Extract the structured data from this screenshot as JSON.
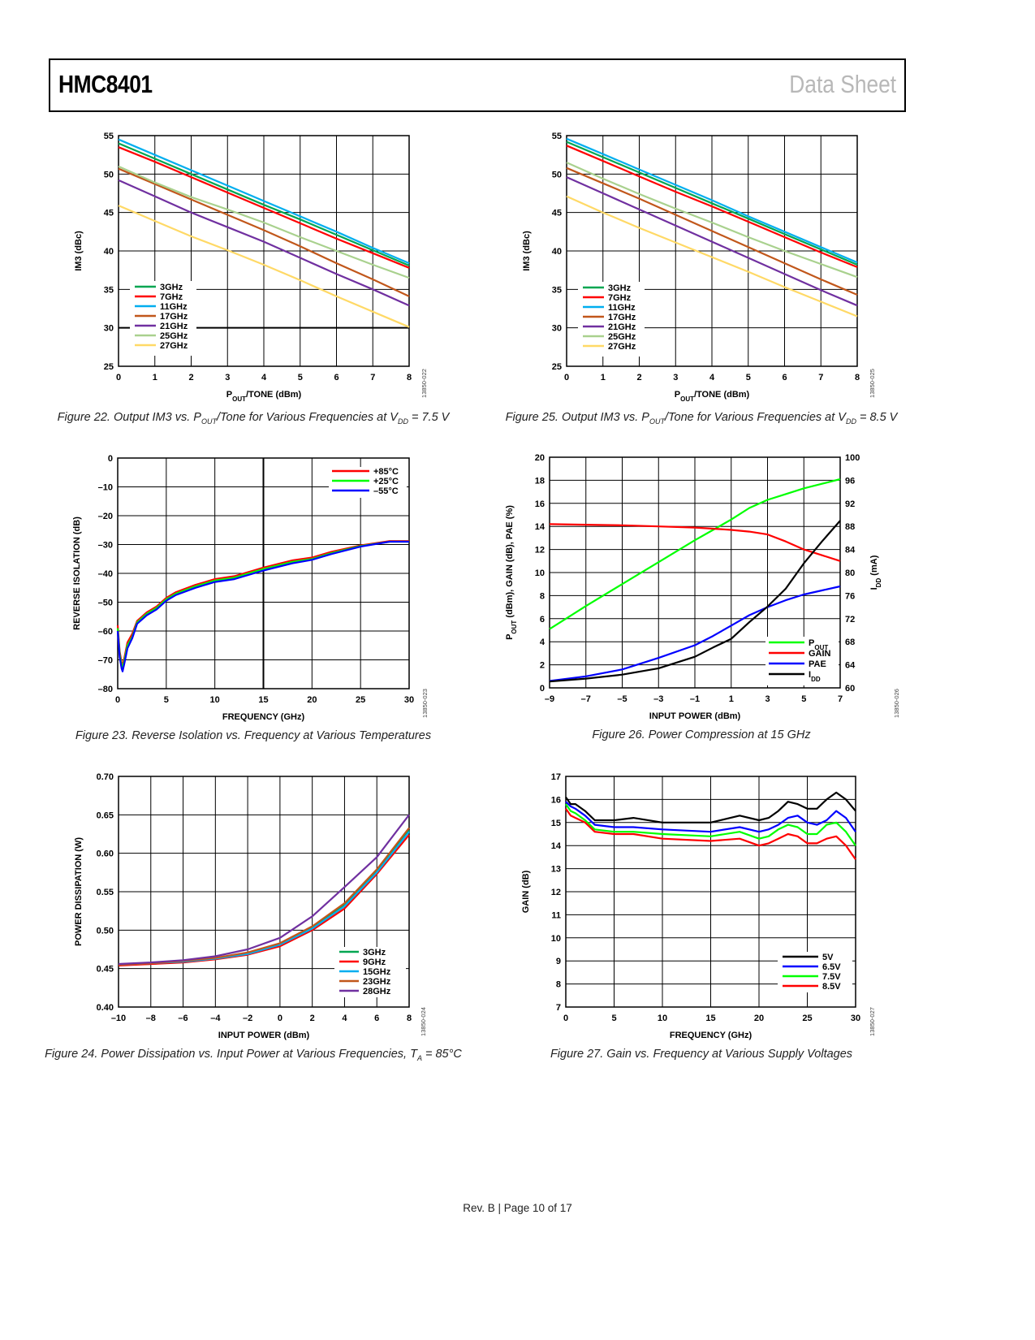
{
  "header": {
    "title": "HMC8401",
    "doc_type": "Data Sheet"
  },
  "captions": {
    "fig22": [
      "Figure 22. Output IM3 vs. P",
      "OUT",
      "/Tone for Various Frequencies at V",
      "DD",
      " = 7.5 V"
    ],
    "fig25": [
      "Figure 25. Output IM3 vs. P",
      "OUT",
      "/Tone for Various Frequencies at V",
      "DD",
      " = 8.5 V"
    ],
    "fig23": "Figure 23. Reverse Isolation vs. Frequency at Various Temperatures",
    "fig26": "Figure 26. Power Compression at 15 GHz",
    "fig24": [
      "Figure 24. Power Dissipation vs. Input Power at Various Frequencies, T",
      "A",
      " = 85°C"
    ],
    "fig27": "Figure 27. Gain vs. Frequency at Various Supply Voltages"
  },
  "footer": "Rev. B | Page 10 of 17",
  "chart_data": [
    {
      "id": "fig22",
      "type": "line",
      "code": "13850-022",
      "xlabel": [
        "P",
        [
          "OUT"
        ],
        "/TONE (dBm)"
      ],
      "ylabel": [
        "IM3 (dBc)"
      ],
      "xlim": [
        0,
        8
      ],
      "ylim": [
        25,
        55
      ],
      "xticks": [
        0,
        1,
        2,
        3,
        4,
        5,
        6,
        7,
        8
      ],
      "xtick_labels": [
        "0",
        "1",
        "2",
        "3",
        "4",
        "5",
        "6",
        "7",
        "8"
      ],
      "yticks": [
        25,
        30,
        35,
        40,
        45,
        50,
        55
      ],
      "ytick_labels": [
        "25",
        "30",
        "35",
        "40",
        "45",
        "50",
        "55"
      ],
      "grid": true,
      "legend_position": "bottom-left",
      "x": [
        0,
        1,
        2,
        3,
        4,
        5,
        6,
        7,
        8
      ],
      "series": [
        {
          "name": "3GHz",
          "color": "#00a651",
          "values": [
            54.0,
            52.0,
            50.0,
            48.0,
            46.0,
            44.1,
            42.1,
            40.1,
            38.1
          ]
        },
        {
          "name": "7GHz",
          "color": "#ff0000",
          "values": [
            53.5,
            51.6,
            49.6,
            47.6,
            45.6,
            43.6,
            41.6,
            39.7,
            37.8
          ]
        },
        {
          "name": "11GHz",
          "color": "#00aeef",
          "values": [
            54.5,
            52.5,
            50.5,
            48.5,
            46.5,
            44.5,
            42.5,
            40.4,
            38.4
          ]
        },
        {
          "name": "17GHz",
          "color": "#c1571b",
          "values": [
            50.7,
            48.7,
            46.7,
            44.7,
            42.7,
            40.6,
            38.4,
            36.3,
            34.1
          ]
        },
        {
          "name": "21GHz",
          "color": "#7030a0",
          "values": [
            49.2,
            47.1,
            45.0,
            43.1,
            41.2,
            39.1,
            37.0,
            35.0,
            32.9
          ]
        },
        {
          "name": "25GHz",
          "color": "#a9d18e",
          "values": [
            51.0,
            48.9,
            47.0,
            45.4,
            43.7,
            41.8,
            40.0,
            38.2,
            36.5
          ]
        },
        {
          "name": "27GHz",
          "color": "#ffd966",
          "values": [
            45.9,
            43.9,
            41.9,
            40.1,
            38.2,
            36.2,
            34.1,
            32.1,
            30.1
          ]
        }
      ]
    },
    {
      "id": "fig25",
      "type": "line",
      "code": "13850-025",
      "xlabel": [
        "P",
        [
          "OUT"
        ],
        "/TONE (dBm)"
      ],
      "ylabel": [
        "IM3 (dBc)"
      ],
      "xlim": [
        0,
        8
      ],
      "ylim": [
        25,
        55
      ],
      "xticks": [
        0,
        1,
        2,
        3,
        4,
        5,
        6,
        7,
        8
      ],
      "xtick_labels": [
        "0",
        "1",
        "2",
        "3",
        "4",
        "5",
        "6",
        "7",
        "8"
      ],
      "yticks": [
        25,
        30,
        35,
        40,
        45,
        50,
        55
      ],
      "ytick_labels": [
        "25",
        "30",
        "35",
        "40",
        "45",
        "50",
        "55"
      ],
      "grid": true,
      "legend_position": "bottom-left",
      "x": [
        0,
        1,
        2,
        3,
        4,
        5,
        6,
        7,
        8
      ],
      "series": [
        {
          "name": "3GHz",
          "color": "#00a651",
          "values": [
            54.2,
            52.2,
            50.2,
            48.2,
            46.2,
            44.2,
            42.2,
            40.2,
            38.2
          ]
        },
        {
          "name": "7GHz",
          "color": "#ff0000",
          "values": [
            53.7,
            51.7,
            49.7,
            47.7,
            45.8,
            43.8,
            41.8,
            39.8,
            37.9
          ]
        },
        {
          "name": "11GHz",
          "color": "#00aeef",
          "values": [
            54.6,
            52.6,
            50.6,
            48.6,
            46.6,
            44.5,
            42.5,
            40.5,
            38.5
          ]
        },
        {
          "name": "17GHz",
          "color": "#c1571b",
          "values": [
            50.8,
            48.8,
            46.8,
            44.7,
            42.6,
            40.5,
            38.4,
            36.3,
            34.3
          ]
        },
        {
          "name": "21GHz",
          "color": "#7030a0",
          "values": [
            49.6,
            47.5,
            45.4,
            43.3,
            41.2,
            39.1,
            37.0,
            34.9,
            32.9
          ]
        },
        {
          "name": "25GHz",
          "color": "#a9d18e",
          "values": [
            51.5,
            49.4,
            47.4,
            45.5,
            43.7,
            41.8,
            40.0,
            38.3,
            36.6
          ]
        },
        {
          "name": "27GHz",
          "color": "#ffd966",
          "values": [
            47.1,
            45.0,
            43.0,
            41.1,
            39.2,
            37.3,
            35.3,
            33.4,
            31.5
          ]
        }
      ]
    },
    {
      "id": "fig23",
      "type": "line",
      "code": "13850-023",
      "xlabel": [
        "FREQUENCY (GHz)"
      ],
      "ylabel": [
        "REVERSE ISOLATION (dB)"
      ],
      "xlim": [
        0,
        30
      ],
      "ylim": [
        -80,
        0
      ],
      "xticks": [
        0,
        5,
        10,
        15,
        20,
        25,
        30
      ],
      "xtick_labels": [
        "0",
        "5",
        "10",
        "15",
        "20",
        "25",
        "30"
      ],
      "yticks": [
        -80,
        -70,
        -60,
        -50,
        -40,
        -30,
        -20,
        -10,
        0
      ],
      "ytick_labels": [
        "–80",
        "–70",
        "–60",
        "–50",
        "–40",
        "–30",
        "–20",
        "–10",
        "0"
      ],
      "grid": true,
      "legend_position": "top-right",
      "x": [
        0,
        0.2,
        0.4,
        0.5,
        0.7,
        1,
        1.5,
        2,
        3,
        4,
        5,
        6,
        8,
        10,
        12,
        15,
        18,
        20,
        22,
        25,
        28,
        30
      ],
      "series": [
        {
          "name": "+85°C",
          "color": "#ff0000",
          "values": [
            -58,
            -67,
            -71,
            -72,
            -69,
            -64,
            -61,
            -56.5,
            -53.5,
            -51.5,
            -48.5,
            -46.5,
            -44,
            -42,
            -41,
            -38,
            -35.5,
            -34.5,
            -32.5,
            -30.3,
            -28.8,
            -28.8
          ]
        },
        {
          "name": "+25°C",
          "color": "#00ff00",
          "values": [
            -59,
            -68,
            -72,
            -73,
            -70,
            -65,
            -62,
            -57,
            -54,
            -52,
            -49,
            -47,
            -44.5,
            -42.5,
            -41.5,
            -38.5,
            -36,
            -35,
            -33,
            -30.5,
            -29,
            -29
          ]
        },
        {
          "name": "–55°C",
          "color": "#0000ff",
          "values": [
            -60,
            -69,
            -73,
            -74,
            -71,
            -66,
            -62.5,
            -57.5,
            -54.5,
            -52.5,
            -49.5,
            -47.5,
            -45,
            -43,
            -42,
            -39,
            -36.5,
            -35.3,
            -33.3,
            -30.7,
            -29,
            -29
          ]
        }
      ]
    },
    {
      "id": "fig26",
      "type": "line",
      "code": "13850-026",
      "xlabel": [
        "INPUT POWER (dBm)"
      ],
      "ylabel": [
        "P",
        [
          "OUT"
        ],
        " (dBm), GAIN (dB), PAE (%)"
      ],
      "y2label": [
        "I",
        [
          "DD"
        ],
        " (mA)"
      ],
      "xlim": [
        -9,
        7
      ],
      "ylim": [
        0,
        20
      ],
      "y2lim": [
        60,
        100
      ],
      "xticks": [
        -9,
        -7,
        -5,
        -3,
        -1,
        1,
        3,
        5,
        7
      ],
      "xtick_labels": [
        "–9",
        "–7",
        "–5",
        "–3",
        "–1",
        "1",
        "3",
        "5",
        "7"
      ],
      "yticks": [
        0,
        2,
        4,
        6,
        8,
        10,
        12,
        14,
        16,
        18,
        20
      ],
      "ytick_labels": [
        "0",
        "2",
        "4",
        "6",
        "8",
        "10",
        "12",
        "14",
        "16",
        "18",
        "20"
      ],
      "y2ticks": [
        60,
        64,
        68,
        72,
        76,
        80,
        84,
        88,
        92,
        96,
        100
      ],
      "y2tick_labels": [
        "60",
        "64",
        "68",
        "72",
        "76",
        "80",
        "84",
        "88",
        "92",
        "96",
        "100"
      ],
      "grid": true,
      "legend_position": "bottom-right",
      "x": [
        -9,
        -7,
        -5,
        -3,
        -1,
        0,
        1,
        2,
        3,
        4,
        5,
        6,
        7
      ],
      "series": [
        {
          "name": [
            "P",
            [
              "OUT"
            ]
          ],
          "color": "#00ff00",
          "axis": "left",
          "values": [
            5.1,
            7.1,
            9.0,
            10.9,
            12.8,
            13.7,
            14.6,
            15.6,
            16.3,
            16.8,
            17.3,
            17.7,
            18.1
          ]
        },
        {
          "name": [
            "GAIN"
          ],
          "color": "#ff0000",
          "axis": "left",
          "values": [
            14.2,
            14.15,
            14.1,
            14.0,
            13.9,
            13.8,
            13.7,
            13.55,
            13.3,
            12.7,
            12.0,
            11.5,
            11.0
          ]
        },
        {
          "name": [
            "PAE"
          ],
          "color": "#0000ff",
          "axis": "left",
          "values": [
            0.6,
            1.0,
            1.6,
            2.6,
            3.7,
            4.5,
            5.4,
            6.3,
            7.0,
            7.6,
            8.1,
            8.45,
            8.8
          ]
        },
        {
          "name": [
            "I",
            [
              "DD"
            ]
          ],
          "color": "#000000",
          "axis": "right",
          "values": [
            61.1,
            61.6,
            62.3,
            63.4,
            65.4,
            67.0,
            68.5,
            71.4,
            74.1,
            77.2,
            81.6,
            85.4,
            89.0
          ]
        }
      ]
    },
    {
      "id": "fig24",
      "type": "line",
      "code": "13850-024",
      "xlabel": [
        "INPUT POWER (dBm)"
      ],
      "ylabel": [
        "POWER DISSIPATION (W)"
      ],
      "xlim": [
        -10,
        8
      ],
      "ylim": [
        0.4,
        0.7
      ],
      "xticks": [
        -10,
        -8,
        -6,
        -4,
        -2,
        0,
        2,
        4,
        6,
        8
      ],
      "xtick_labels": [
        "–10",
        "–8",
        "–6",
        "–4",
        "–2",
        "0",
        "2",
        "4",
        "6",
        "8"
      ],
      "yticks": [
        0.4,
        0.45,
        0.5,
        0.55,
        0.6,
        0.65,
        0.7
      ],
      "ytick_labels": [
        "0.40",
        "0.45",
        "0.50",
        "0.55",
        "0.60",
        "0.65",
        "0.70"
      ],
      "grid": true,
      "legend_position": "bottom-right",
      "x": [
        -10,
        -8,
        -6,
        -4,
        -2,
        0,
        2,
        4,
        6,
        8
      ],
      "series": [
        {
          "name": "3GHz",
          "color": "#00a651",
          "values": [
            0.455,
            0.456,
            0.459,
            0.463,
            0.47,
            0.482,
            0.503,
            0.533,
            0.576,
            0.63
          ]
        },
        {
          "name": "9GHz",
          "color": "#ff0000",
          "values": [
            0.454,
            0.456,
            0.458,
            0.462,
            0.468,
            0.479,
            0.5,
            0.528,
            0.573,
            0.624
          ]
        },
        {
          "name": "15GHz",
          "color": "#00aeef",
          "values": [
            0.455,
            0.457,
            0.459,
            0.463,
            0.469,
            0.481,
            0.502,
            0.531,
            0.575,
            0.628
          ]
        },
        {
          "name": "23GHz",
          "color": "#c1571b",
          "values": [
            0.455,
            0.457,
            0.46,
            0.464,
            0.471,
            0.483,
            0.505,
            0.535,
            0.579,
            0.633
          ]
        },
        {
          "name": "28GHz",
          "color": "#7030a0",
          "values": [
            0.456,
            0.458,
            0.461,
            0.466,
            0.475,
            0.49,
            0.518,
            0.556,
            0.595,
            0.65
          ]
        }
      ]
    },
    {
      "id": "fig27",
      "type": "line",
      "code": "13850-027",
      "xlabel": [
        "FREQUENCY (GHz)"
      ],
      "ylabel": [
        "GAIN (dB)"
      ],
      "xlim": [
        0,
        30
      ],
      "ylim": [
        7,
        17
      ],
      "xticks": [
        0,
        5,
        10,
        15,
        20,
        25,
        30
      ],
      "xtick_labels": [
        "0",
        "5",
        "10",
        "15",
        "20",
        "25",
        "30"
      ],
      "yticks": [
        7,
        8,
        9,
        10,
        11,
        12,
        13,
        14,
        15,
        16,
        17
      ],
      "ytick_labels": [
        "7",
        "8",
        "9",
        "10",
        "11",
        "12",
        "13",
        "14",
        "15",
        "16",
        "17"
      ],
      "grid": true,
      "legend_position": "bottom-right",
      "x": [
        0,
        0.5,
        1,
        2,
        3,
        5,
        7,
        10,
        15,
        18,
        20,
        21,
        22,
        23,
        24,
        25,
        26,
        27,
        28,
        29,
        30
      ],
      "series": [
        {
          "name": "5V",
          "color": "#000000",
          "values": [
            16.1,
            15.8,
            15.8,
            15.5,
            15.1,
            15.1,
            15.2,
            15.0,
            15.0,
            15.3,
            15.1,
            15.2,
            15.5,
            15.9,
            15.8,
            15.6,
            15.6,
            16.0,
            16.3,
            16.0,
            15.5
          ]
        },
        {
          "name": "6.5V",
          "color": "#0000ff",
          "values": [
            15.9,
            15.7,
            15.6,
            15.3,
            14.9,
            14.8,
            14.8,
            14.7,
            14.6,
            14.8,
            14.6,
            14.7,
            14.9,
            15.2,
            15.3,
            15.0,
            14.9,
            15.1,
            15.5,
            15.2,
            14.6
          ]
        },
        {
          "name": "7.5V",
          "color": "#00ff00",
          "values": [
            15.8,
            15.5,
            15.4,
            15.1,
            14.7,
            14.6,
            14.6,
            14.5,
            14.4,
            14.6,
            14.3,
            14.4,
            14.7,
            14.9,
            14.8,
            14.5,
            14.5,
            14.9,
            15.0,
            14.6,
            14.0
          ]
        },
        {
          "name": "8.5V",
          "color": "#ff0000",
          "values": [
            15.6,
            15.3,
            15.2,
            15.0,
            14.6,
            14.5,
            14.5,
            14.3,
            14.2,
            14.3,
            14.0,
            14.1,
            14.3,
            14.5,
            14.4,
            14.1,
            14.1,
            14.3,
            14.4,
            14.0,
            13.4
          ]
        }
      ]
    }
  ]
}
